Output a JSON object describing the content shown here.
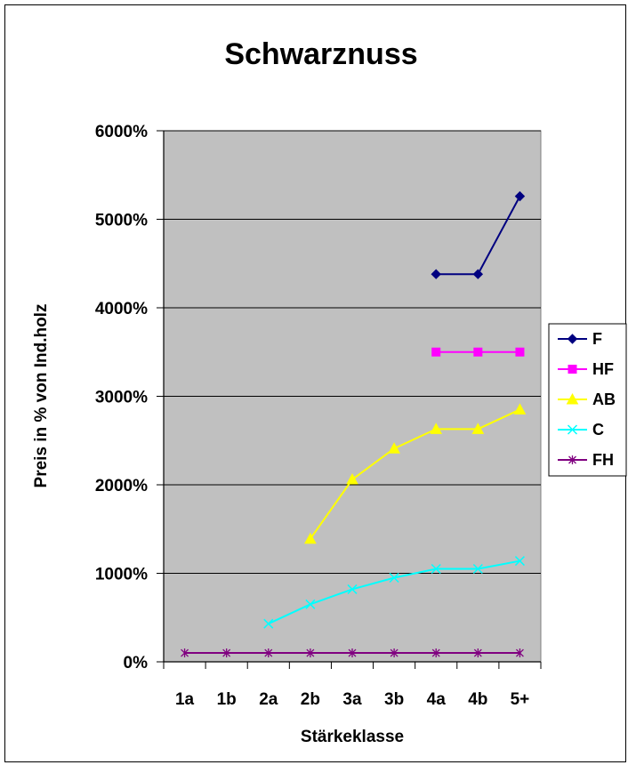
{
  "chart_data": {
    "type": "line",
    "title": "Schwarznuss",
    "xlabel": "Stärkeklasse",
    "ylabel": "Preis in % von Ind.holz",
    "categories": [
      "1a",
      "1b",
      "2a",
      "2b",
      "3a",
      "3b",
      "4a",
      "4b",
      "5+"
    ],
    "yticks": [
      "0%",
      "1000%",
      "2000%",
      "3000%",
      "4000%",
      "5000%",
      "6000%"
    ],
    "ylim": [
      0,
      6000
    ],
    "grid": true,
    "plot_background": "#C0C0C0",
    "legend_position": "right",
    "series": [
      {
        "name": "F",
        "color": "#000080",
        "marker": "diamond",
        "values": [
          null,
          null,
          null,
          null,
          null,
          null,
          4380,
          4380,
          5260
        ]
      },
      {
        "name": "HF",
        "color": "#FF00FF",
        "marker": "square",
        "values": [
          null,
          null,
          null,
          null,
          null,
          null,
          3500,
          3500,
          3500
        ]
      },
      {
        "name": "AB",
        "color": "#FFFF00",
        "marker": "triangle",
        "values": [
          null,
          null,
          null,
          1390,
          2060,
          2410,
          2630,
          2630,
          2850
        ]
      },
      {
        "name": "C",
        "color": "#00FFFF",
        "marker": "x",
        "values": [
          null,
          null,
          430,
          650,
          820,
          950,
          1050,
          1050,
          1140
        ]
      },
      {
        "name": "FH",
        "color": "#800080",
        "marker": "star",
        "values": [
          100,
          100,
          100,
          100,
          100,
          100,
          100,
          100,
          100
        ]
      }
    ]
  }
}
